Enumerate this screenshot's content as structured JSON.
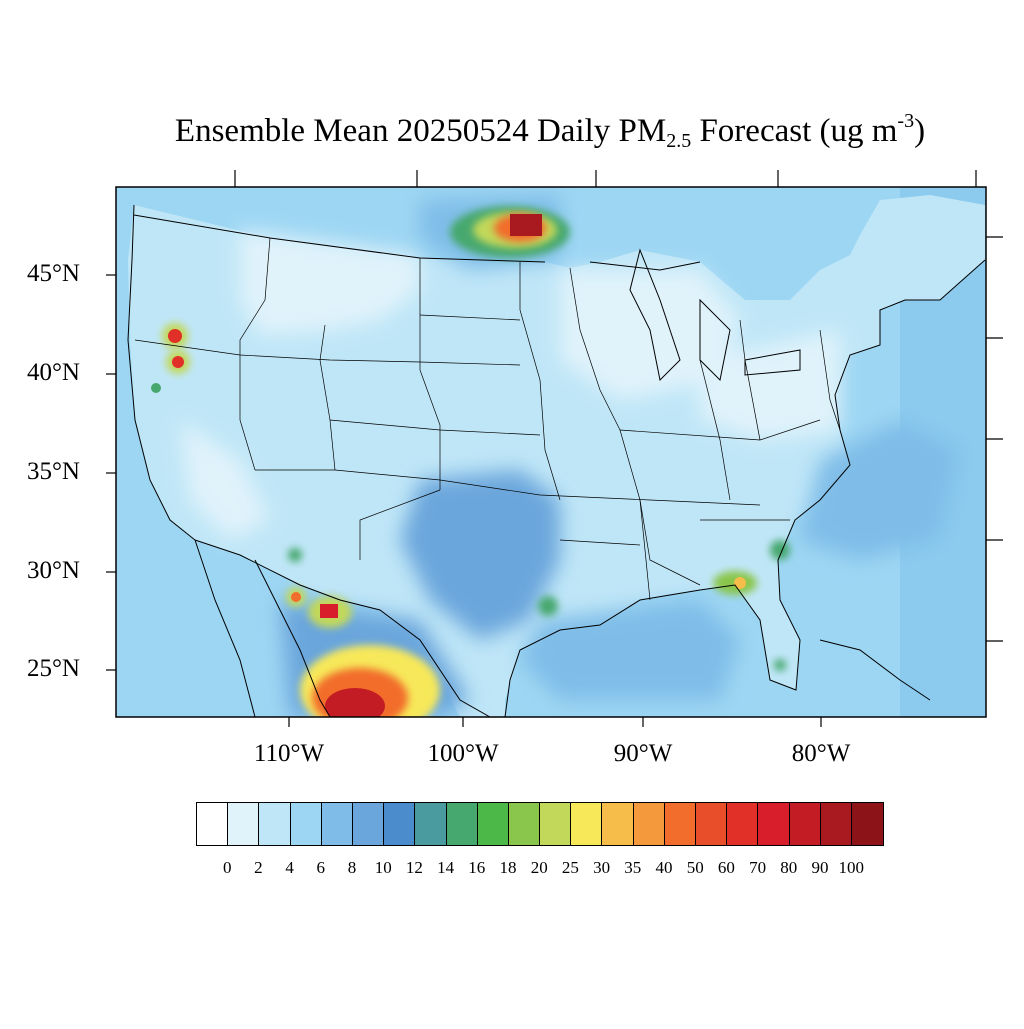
{
  "title": {
    "prefix": "Ensemble Mean 20250524 Daily PM",
    "sub": "2.5",
    "middle": " Forecast (ug m",
    "sup": "-3",
    "suffix": ")"
  },
  "lat_labels": [
    "45°N",
    "40°N",
    "35°N",
    "30°N",
    "25°N"
  ],
  "lon_labels": [
    "110°W",
    "100°W",
    "90°W",
    "80°W"
  ],
  "legend": {
    "ticks": [
      "0",
      "2",
      "4",
      "6",
      "8",
      "10",
      "12",
      "14",
      "16",
      "18",
      "20",
      "25",
      "30",
      "35",
      "40",
      "50",
      "60",
      "70",
      "80",
      "90",
      "100"
    ],
    "colors": [
      "#ffffff",
      "#e0f3fb",
      "#bfe6f7",
      "#9dd6f3",
      "#7fbde8",
      "#6aa6dc",
      "#4a8ccc",
      "#4a9ba0",
      "#46a86e",
      "#4cb848",
      "#8ac64c",
      "#c2d85a",
      "#f7e85a",
      "#f7bd4a",
      "#f59a3c",
      "#f26c2c",
      "#e94e2a",
      "#e03028",
      "#d81e2a",
      "#c41c24",
      "#a81a20",
      "#8c1418"
    ]
  },
  "map": {
    "ocean_color": "#9dd6f3",
    "land_base_color": "#bfe6f7"
  }
}
